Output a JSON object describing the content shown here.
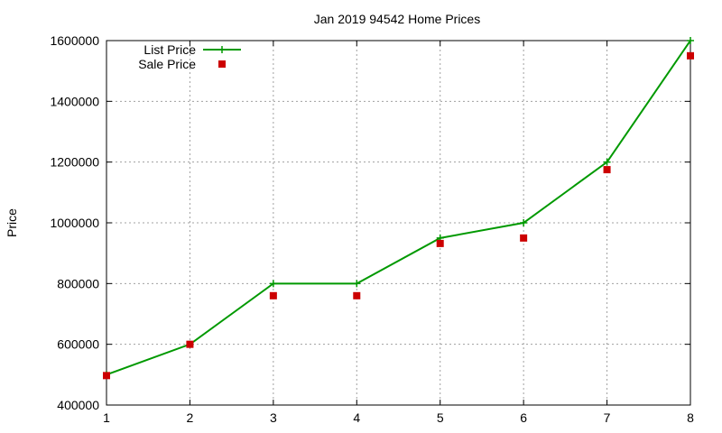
{
  "chart_data": {
    "type": "line",
    "title": "Jan 2019 94542 Home Prices",
    "xlabel": "",
    "ylabel": "Price",
    "x": [
      1,
      2,
      3,
      4,
      5,
      6,
      7,
      8
    ],
    "xlim": [
      1,
      8
    ],
    "ylim": [
      400000,
      1600000
    ],
    "xticks": [
      1,
      2,
      3,
      4,
      5,
      6,
      7,
      8
    ],
    "yticks": [
      400000,
      600000,
      800000,
      1000000,
      1200000,
      1400000,
      1600000
    ],
    "grid": true,
    "legend_position": "top-left",
    "series": [
      {
        "name": "List Price",
        "style": "lines+points",
        "marker": "plus",
        "color": "#009900",
        "values": [
          500000,
          600000,
          800000,
          800000,
          950000,
          1000000,
          1200000,
          1600000
        ]
      },
      {
        "name": "Sale Price",
        "style": "points",
        "marker": "square",
        "color": "#cc0000",
        "values": [
          497000,
          600000,
          760000,
          760000,
          932000,
          950000,
          1175000,
          1550000
        ]
      }
    ]
  }
}
